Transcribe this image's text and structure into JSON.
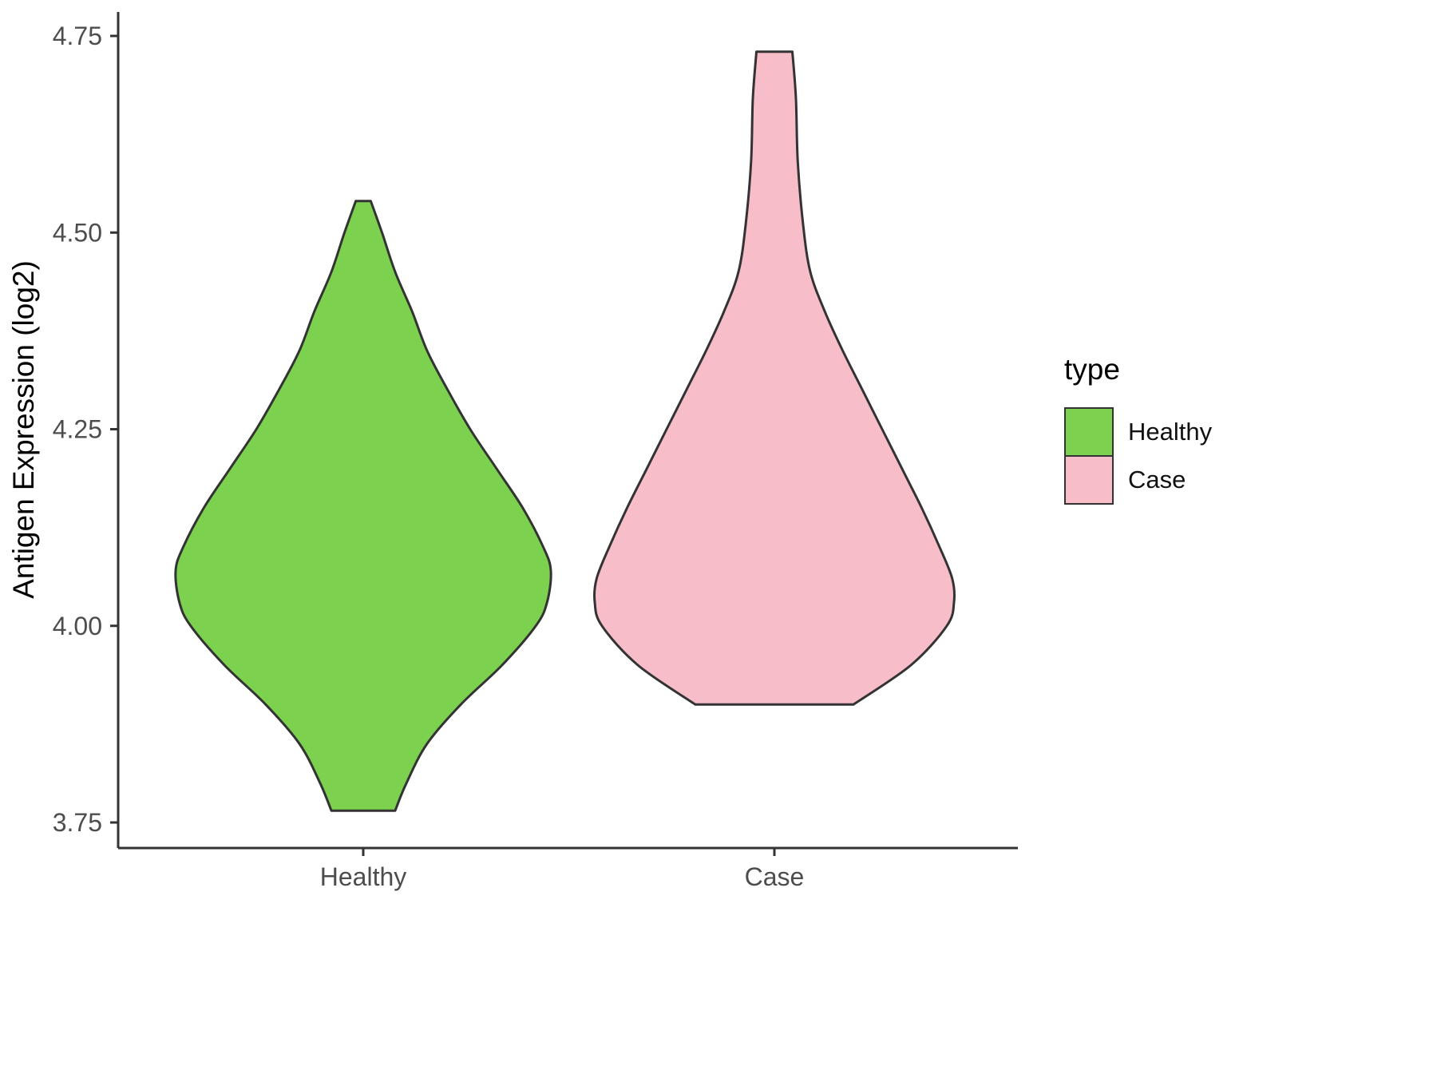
{
  "chart_data": {
    "type": "violin",
    "title": "",
    "xlabel": "",
    "ylabel": "Antigen Expression (log2)",
    "categories": [
      "Healthy",
      "Case"
    ],
    "ylim": [
      3.7,
      4.78
    ],
    "grid": false,
    "y_ticks": [
      {
        "value": 3.75,
        "label": "3.75"
      },
      {
        "value": 4.0,
        "label": "4.00"
      },
      {
        "value": 4.25,
        "label": "4.25"
      },
      {
        "value": 4.5,
        "label": "4.50"
      },
      {
        "value": 4.75,
        "label": "4.75"
      }
    ],
    "legend": {
      "title": "type",
      "position": "right",
      "entries": [
        {
          "label": "Healthy",
          "color": "#7CD24F"
        },
        {
          "label": "Case",
          "color": "#F7BDC8"
        }
      ]
    },
    "series": [
      {
        "name": "Healthy",
        "fill": "#7CD24F",
        "stroke": "#333333",
        "y_min": 3.765,
        "y_max": 4.54,
        "peak_y": 4.07,
        "profile": [
          [
            4.54,
            0.04
          ],
          [
            4.5,
            0.1
          ],
          [
            4.45,
            0.17
          ],
          [
            4.4,
            0.26
          ],
          [
            4.35,
            0.34
          ],
          [
            4.3,
            0.45
          ],
          [
            4.25,
            0.57
          ],
          [
            4.2,
            0.71
          ],
          [
            4.15,
            0.85
          ],
          [
            4.1,
            0.96
          ],
          [
            4.07,
            1.0
          ],
          [
            4.03,
            0.98
          ],
          [
            4.0,
            0.92
          ],
          [
            3.95,
            0.74
          ],
          [
            3.9,
            0.52
          ],
          [
            3.85,
            0.34
          ],
          [
            3.8,
            0.23
          ],
          [
            3.765,
            0.17
          ]
        ]
      },
      {
        "name": "Case",
        "fill": "#F7BDC8",
        "stroke": "#333333",
        "y_min": 3.9,
        "y_max": 4.73,
        "peak_y": 4.03,
        "profile": [
          [
            4.73,
            0.1
          ],
          [
            4.67,
            0.12
          ],
          [
            4.59,
            0.13
          ],
          [
            4.51,
            0.16
          ],
          [
            4.45,
            0.2
          ],
          [
            4.4,
            0.28
          ],
          [
            4.35,
            0.38
          ],
          [
            4.3,
            0.49
          ],
          [
            4.25,
            0.6
          ],
          [
            4.2,
            0.71
          ],
          [
            4.15,
            0.82
          ],
          [
            4.1,
            0.92
          ],
          [
            4.06,
            0.99
          ],
          [
            4.03,
            1.0
          ],
          [
            4.0,
            0.96
          ],
          [
            3.95,
            0.76
          ],
          [
            3.9,
            0.44
          ]
        ]
      }
    ]
  }
}
